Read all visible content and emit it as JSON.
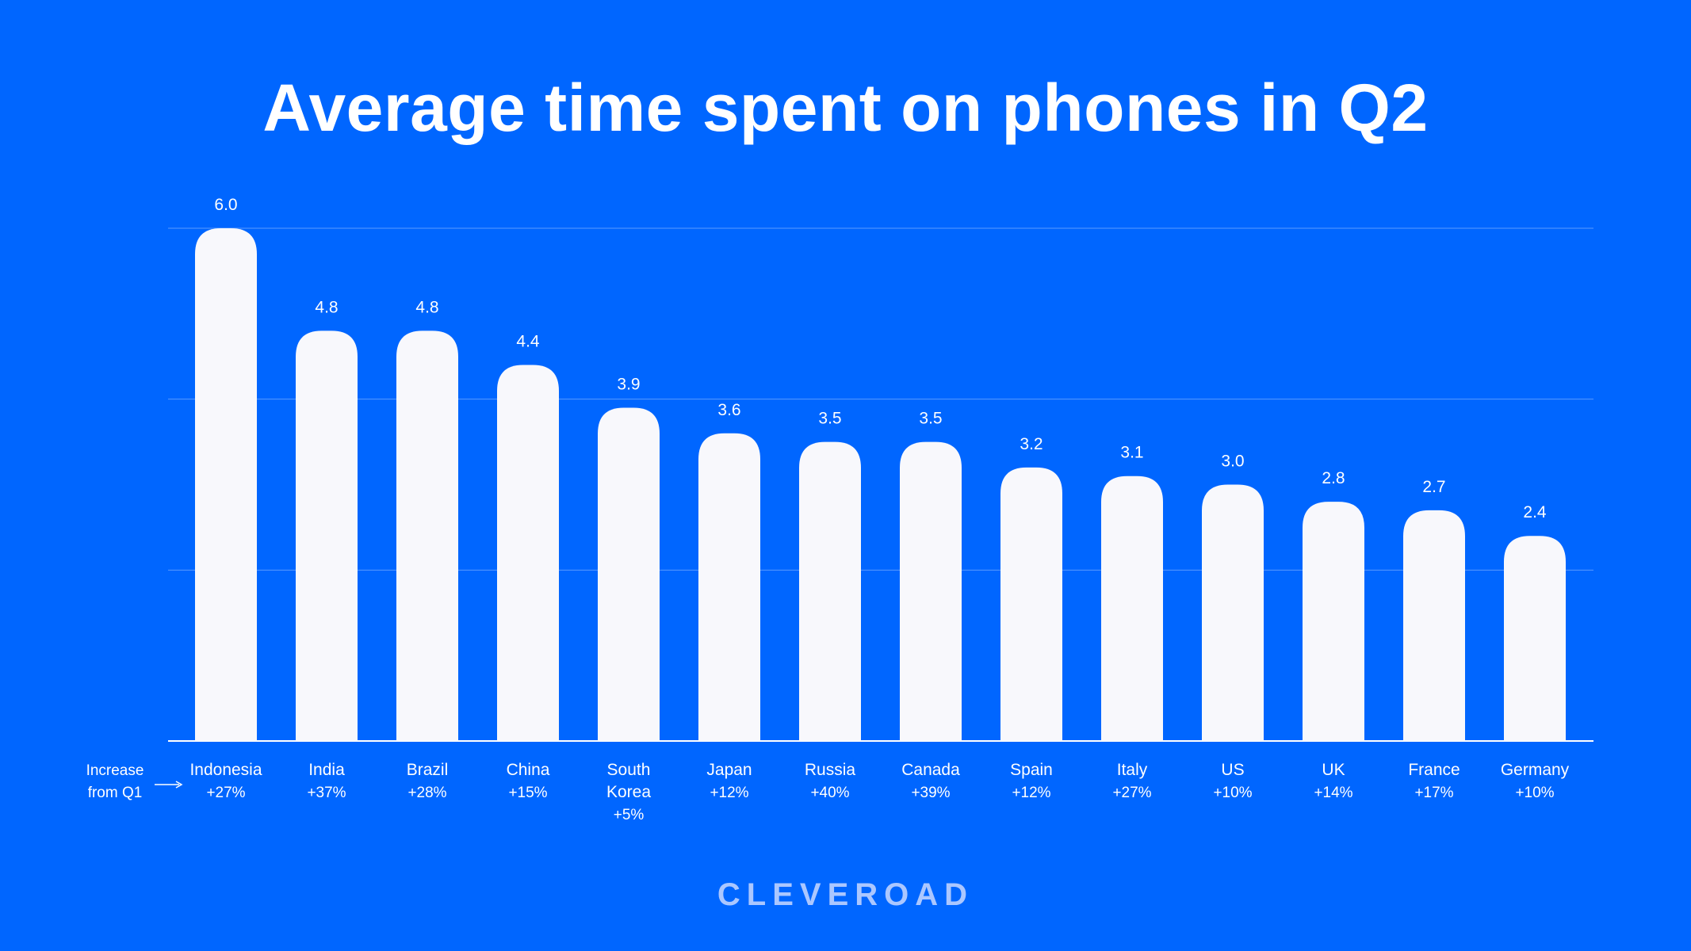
{
  "colors": {
    "background": "#0066FF",
    "bar": "#F8F8FC",
    "grid": "#5A9BFF",
    "text": "#FFFFFF"
  },
  "chart_data": {
    "type": "bar",
    "title": "Average time spent on phones in Q2",
    "categories": [
      "Indonesia",
      "India",
      "Brazil",
      "China",
      "South Korea",
      "Japan",
      "Russia",
      "Canada",
      "Spain",
      "Italy",
      "US",
      "UK",
      "France",
      "Germany"
    ],
    "values": [
      6.0,
      4.8,
      4.8,
      4.4,
      3.9,
      3.6,
      3.5,
      3.5,
      3.2,
      3.1,
      3.0,
      2.8,
      2.7,
      2.4
    ],
    "value_labels": [
      "6.0",
      "4.8",
      "4.8",
      "4.4",
      "3.9",
      "3.6",
      "3.5",
      "3.5",
      "3.2",
      "3.1",
      "3.0",
      "2.8",
      "2.7",
      "2.4"
    ],
    "increase_from_q1": [
      "+27%",
      "+37%",
      "+28%",
      "+15%",
      "+5%",
      "+12%",
      "+40%",
      "+39%",
      "+12%",
      "+27%",
      "+10%",
      "+14%",
      "+17%",
      "+10%"
    ],
    "increase_label": [
      "Increase",
      "from Q1"
    ],
    "ylim": [
      0,
      6
    ],
    "gridlines": [
      0,
      2,
      4,
      6
    ],
    "grid": true,
    "xlabel": "",
    "ylabel": ""
  },
  "branding": {
    "logo_text": "CLEVEROAD"
  }
}
